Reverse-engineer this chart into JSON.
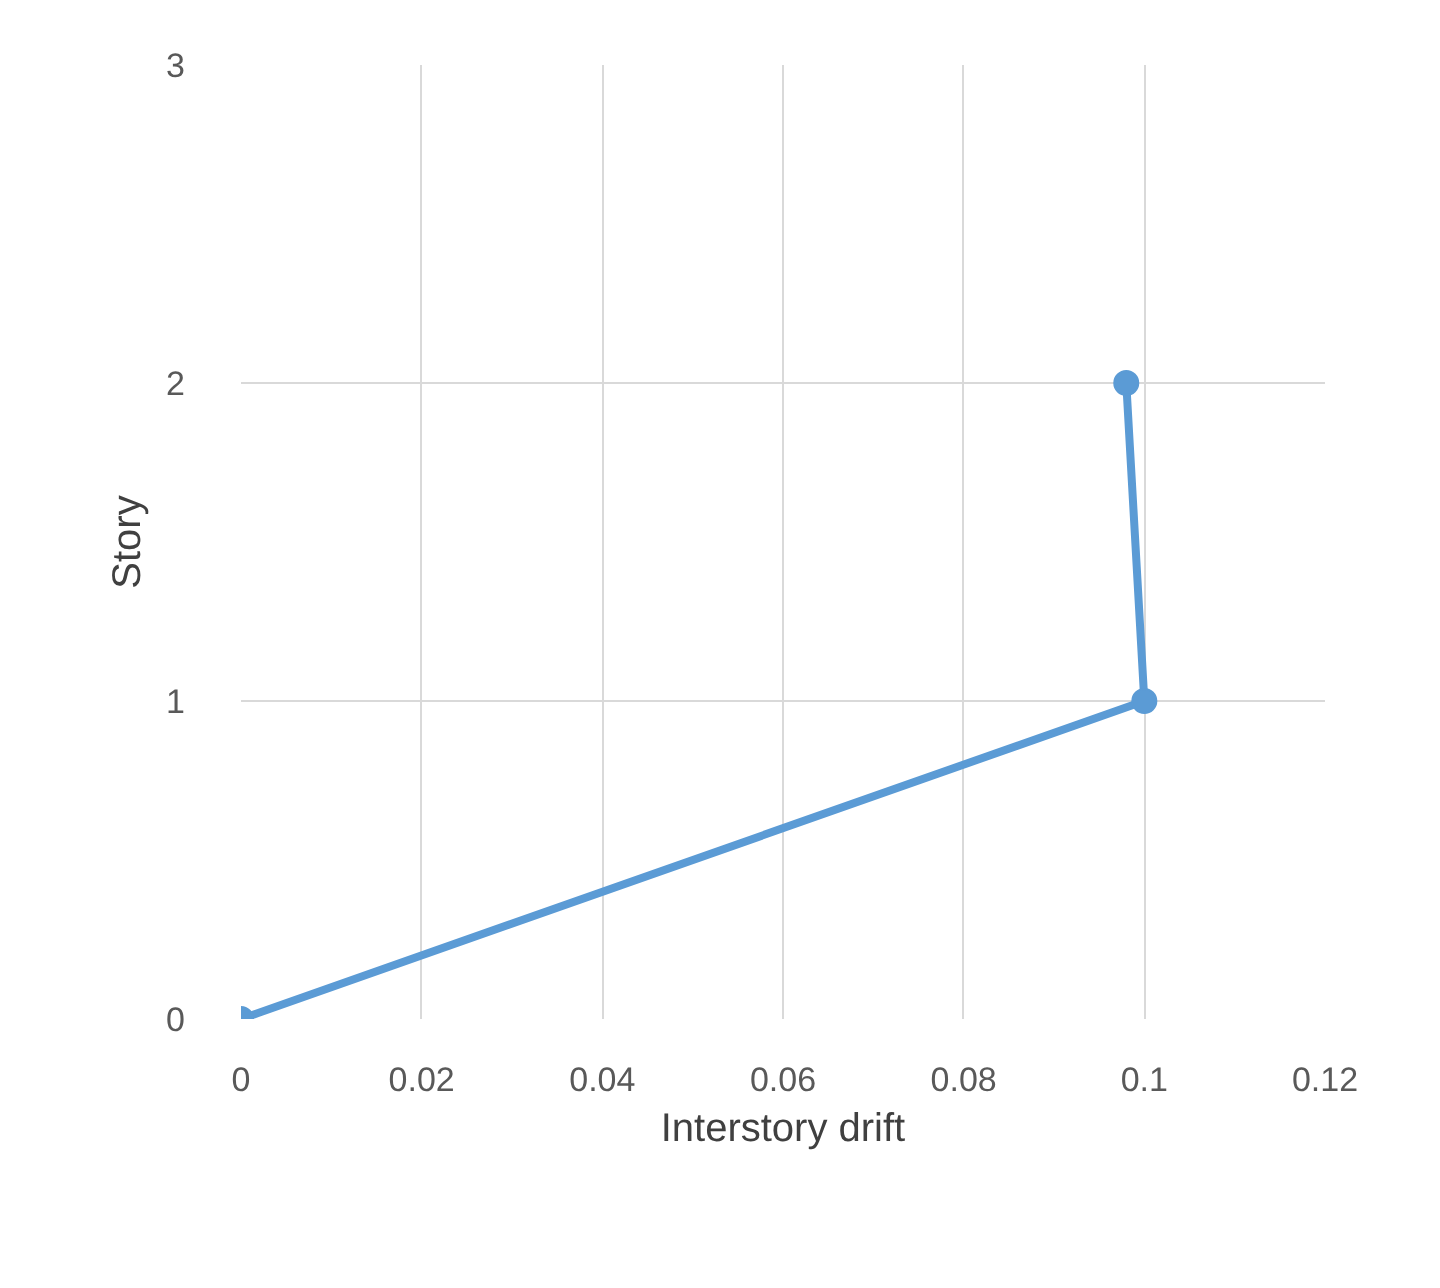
{
  "chart_data": {
    "type": "line",
    "xlabel": "Interstory drift",
    "ylabel": "Story",
    "x": [
      0,
      0.1,
      0.098
    ],
    "series": [
      {
        "color": "#5b9bd5",
        "values": [
          0,
          1,
          2
        ]
      }
    ],
    "xlim": [
      0,
      0.12
    ],
    "xticks": [
      0,
      0.02,
      0.04,
      0.06,
      0.08,
      0.1,
      0.12
    ],
    "ylim": [
      0,
      3
    ],
    "yticks": [
      0,
      1,
      2,
      3
    ],
    "grid": true,
    "marker": "circle",
    "line_style": "solid"
  }
}
